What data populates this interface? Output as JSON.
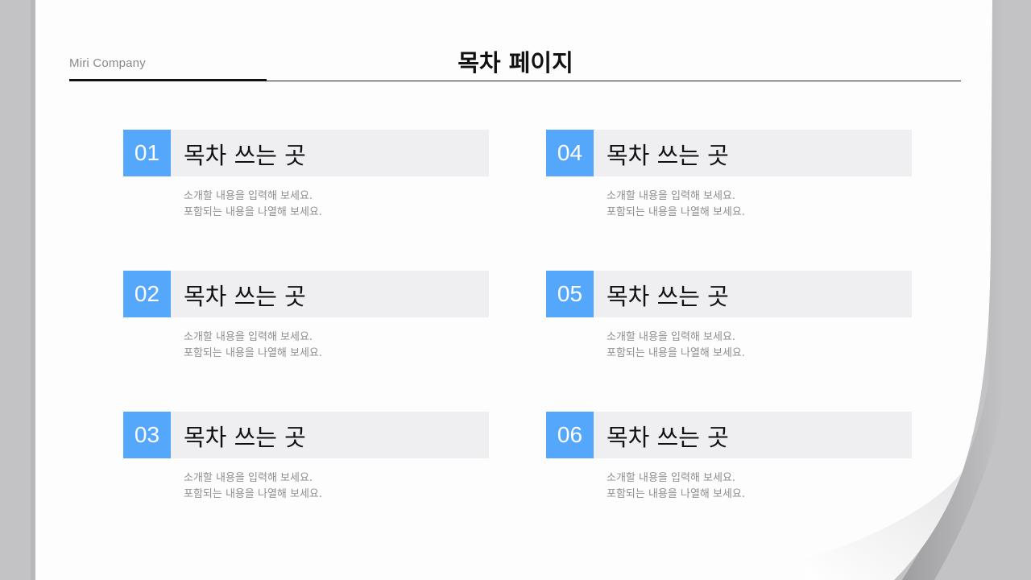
{
  "header": {
    "company": "Miri Company",
    "title": "목차 페이지"
  },
  "colors": {
    "accent": "#55a7fb",
    "bar": "#efeff1",
    "background": "#c3c3c5"
  },
  "items": [
    {
      "number": "01",
      "title": "목차 쓰는 곳",
      "line1": "소개할 내용을 입력해 보세요.",
      "line2": "포함되는 내용을 나열해 보세요."
    },
    {
      "number": "02",
      "title": "목차 쓰는 곳",
      "line1": "소개할 내용을 입력해 보세요.",
      "line2": "포함되는 내용을 나열해 보세요."
    },
    {
      "number": "03",
      "title": "목차 쓰는 곳",
      "line1": "소개할 내용을 입력해 보세요.",
      "line2": "포함되는 내용을 나열해 보세요."
    },
    {
      "number": "04",
      "title": "목차 쓰는 곳",
      "line1": "소개할 내용을 입력해 보세요.",
      "line2": "포함되는 내용을 나열해 보세요."
    },
    {
      "number": "05",
      "title": "목차 쓰는 곳",
      "line1": "소개할 내용을 입력해 보세요.",
      "line2": "포함되는 내용을 나열해 보세요."
    },
    {
      "number": "06",
      "title": "목차 쓰는 곳",
      "line1": "소개할 내용을 입력해 보세요.",
      "line2": "포함되는 내용을 나열해 보세요."
    }
  ]
}
